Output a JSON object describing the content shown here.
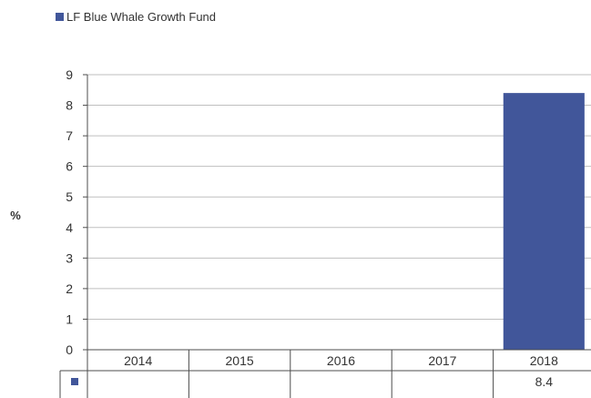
{
  "legend": {
    "label": "LF Blue Whale Growth Fund"
  },
  "chart_data": {
    "type": "bar",
    "categories": [
      "2014",
      "2015",
      "2016",
      "2017",
      "2018"
    ],
    "series": [
      {
        "name": "LF Blue Whale Growth Fund",
        "values": [
          null,
          null,
          null,
          null,
          8.4
        ],
        "color": "#41569a"
      }
    ],
    "table_values": [
      "",
      "",
      "",
      "",
      "8.4"
    ],
    "ylabel": "%",
    "ylim": [
      0,
      9
    ],
    "yticks": [
      0,
      1,
      2,
      3,
      4,
      5,
      6,
      7,
      8,
      9
    ],
    "grid": true,
    "legend_position": "top-left"
  }
}
